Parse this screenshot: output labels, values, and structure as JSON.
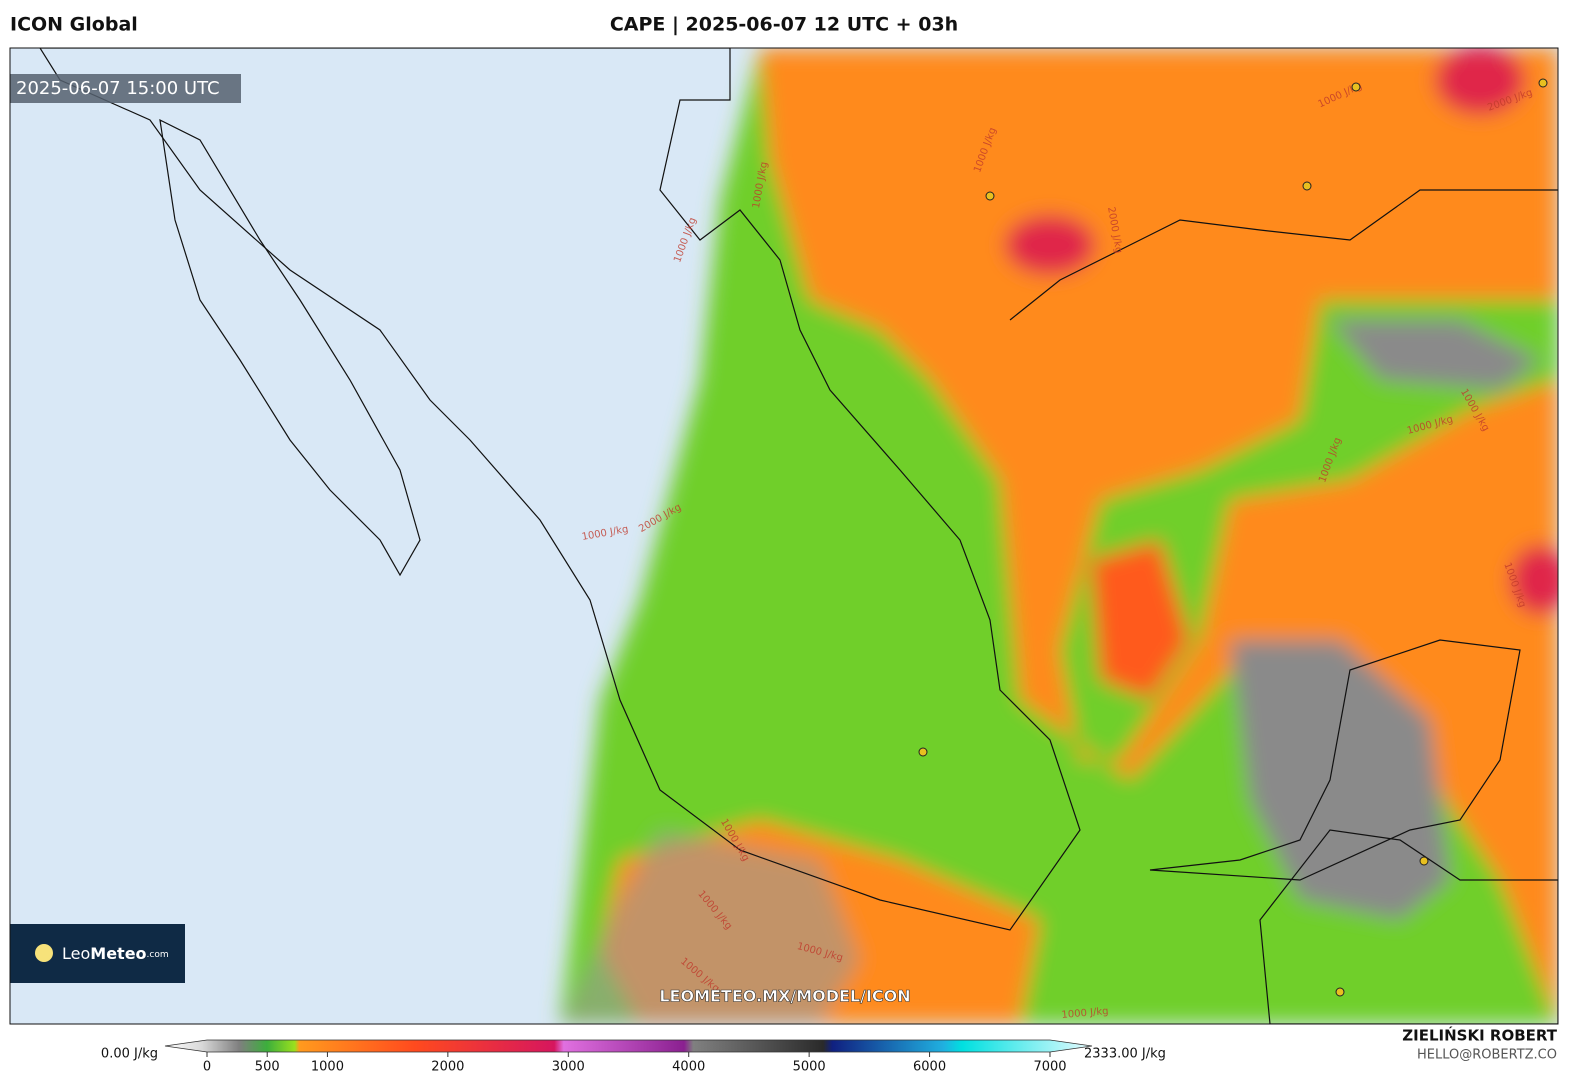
{
  "header": {
    "model": "ICON Global",
    "title": "CAPE | 2025-06-07 12 UTC + 03h"
  },
  "map": {
    "valid_time": "2025-06-07 15:00 UTC",
    "watermark": "LEOMETEO.MX/MODEL/ICON",
    "contour_labels": [
      "1000 J/kg",
      "1000 J/kg",
      "2000 J/kg",
      "1000 J/kg",
      "1000 J/kg",
      "2000 J/kg",
      "1000 J/kg",
      "1000 J/kg",
      "1000 J/kg",
      "1000 J/kg",
      "2000 J/kg",
      "1000 J/kg",
      "1000 J/kg",
      "1000 J/kg",
      "1000 J/kg",
      "1000 J/kg",
      "1000 J/kg"
    ]
  },
  "logo": {
    "leo": "Leo",
    "meteo": "Meteo",
    "tld": ".com"
  },
  "colorbar": {
    "min_label": "0.00 J/kg",
    "max_label": "2333.00 J/kg",
    "ticks": [
      0,
      500,
      1000,
      2000,
      3000,
      4000,
      5000,
      6000,
      7000
    ]
  },
  "credits": {
    "author": "ZIELIŃSKI ROBERT",
    "email": "HELLO@ROBERTZ.CO"
  }
}
